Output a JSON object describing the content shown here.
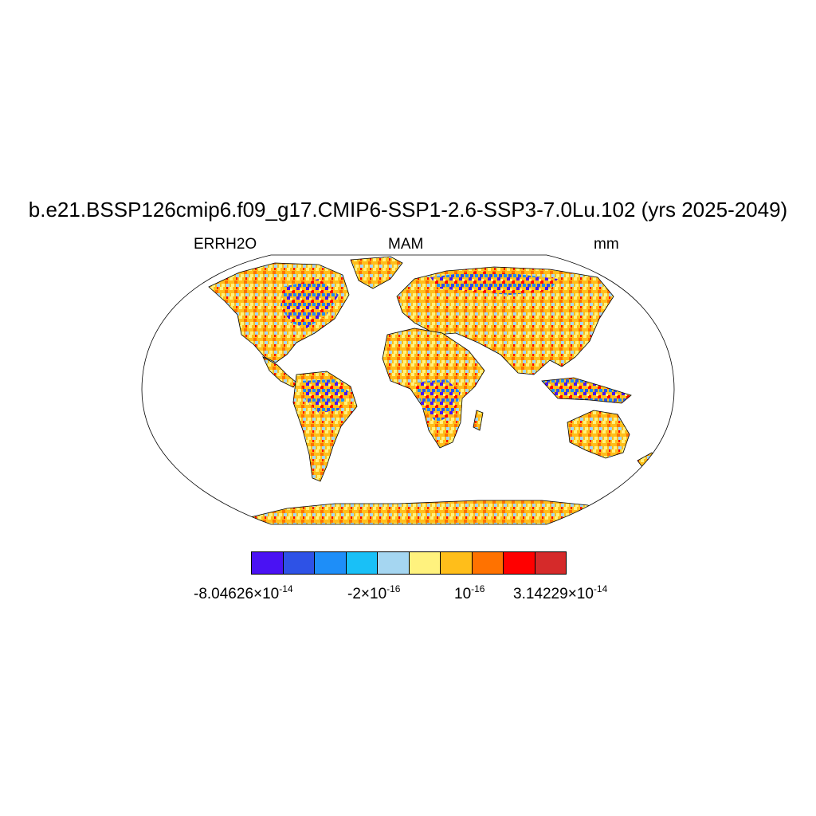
{
  "title": "b.e21.BSSP126cmip6.f09_g17.CMIP6-SSP1-2.6-SSP3-7.0Lu.102 (yrs 2025-2049)",
  "subtitle_left": "ERRH2O",
  "subtitle_center": "MAM",
  "subtitle_right": "mm",
  "colorbar": {
    "colors": [
      "#4a12f3",
      "#2e52e6",
      "#1e8ef8",
      "#19c0f7",
      "#a5d6f1",
      "#fff27e",
      "#ffbe1a",
      "#ff7200",
      "#ff0000",
      "#d52a2a"
    ],
    "labels": [
      {
        "mantissa": "-8.04626",
        "exp": "-14"
      },
      {
        "mantissa": "-2",
        "exp": "-16"
      },
      {
        "mantissa": "",
        "exp": "-16"
      },
      {
        "mantissa": "3.14229",
        "exp": "-14"
      }
    ]
  },
  "map": {
    "projection": "Robinson",
    "background": "#ffffff",
    "dominant_land_color": "#ffbe1a"
  }
}
